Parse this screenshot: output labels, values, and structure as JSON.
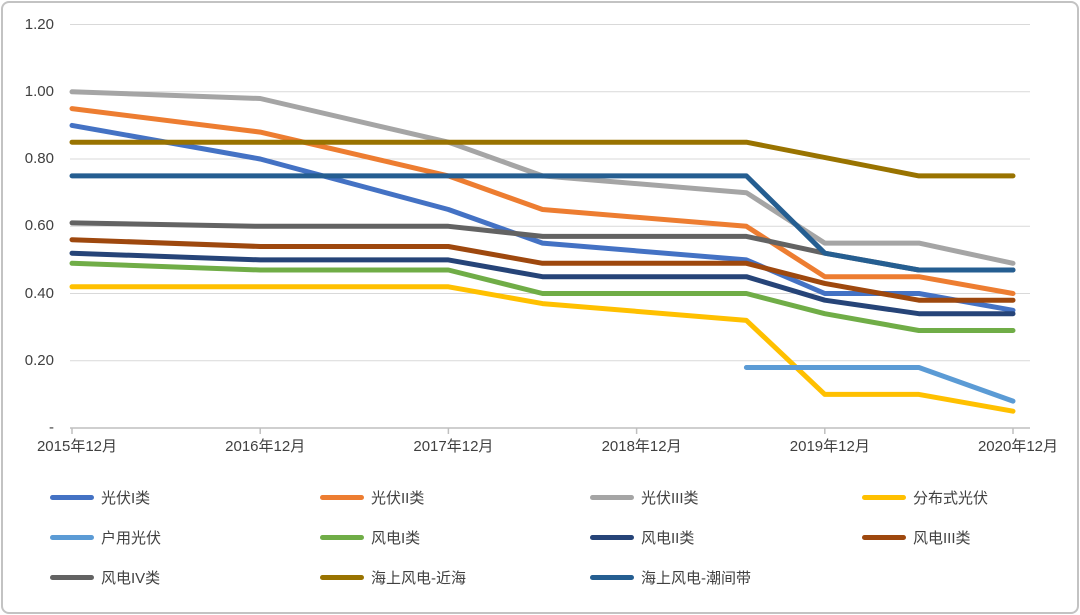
{
  "chart_data": {
    "type": "line",
    "title": "",
    "grid": "horizontal",
    "legend_position": "bottom",
    "x_axis_unit": "date",
    "x_range_months": [
      0,
      60
    ],
    "ylim": [
      0,
      1.2
    ],
    "colors": {
      "gridline": "#d9d9d9",
      "axis_line": "#bfbfbf",
      "tick_mark": "#bfbfbf",
      "tick_text": "#404040"
    },
    "y_ticks": [
      {
        "value": 0.0,
        "label": "-"
      },
      {
        "value": 0.2,
        "label": "0.20"
      },
      {
        "value": 0.4,
        "label": "0.40"
      },
      {
        "value": 0.6,
        "label": "0.60"
      },
      {
        "value": 0.8,
        "label": "0.80"
      },
      {
        "value": 1.0,
        "label": "1.00"
      },
      {
        "value": 1.2,
        "label": "1.20"
      }
    ],
    "x_ticks": [
      {
        "month": 0,
        "label": "2015年12月"
      },
      {
        "month": 12,
        "label": "2016年12月"
      },
      {
        "month": 24,
        "label": "2017年12月"
      },
      {
        "month": 36,
        "label": "2018年12月"
      },
      {
        "month": 48,
        "label": "2019年12月"
      },
      {
        "month": 60,
        "label": "2020年12月"
      }
    ],
    "series": [
      {
        "name": "光伏I类",
        "color": "#4472C4",
        "points": [
          [
            0,
            0.9
          ],
          [
            12,
            0.8
          ],
          [
            24,
            0.65
          ],
          [
            30,
            0.55
          ],
          [
            43,
            0.5
          ],
          [
            48,
            0.4
          ],
          [
            54,
            0.4
          ],
          [
            60,
            0.35
          ]
        ]
      },
      {
        "name": "光伏II类",
        "color": "#ED7D31",
        "points": [
          [
            0,
            0.95
          ],
          [
            12,
            0.88
          ],
          [
            24,
            0.75
          ],
          [
            30,
            0.65
          ],
          [
            43,
            0.6
          ],
          [
            48,
            0.45
          ],
          [
            54,
            0.45
          ],
          [
            60,
            0.4
          ]
        ]
      },
      {
        "name": "光伏III类",
        "color": "#A5A5A5",
        "points": [
          [
            0,
            1.0
          ],
          [
            12,
            0.98
          ],
          [
            24,
            0.85
          ],
          [
            30,
            0.75
          ],
          [
            43,
            0.7
          ],
          [
            48,
            0.55
          ],
          [
            54,
            0.55
          ],
          [
            60,
            0.49
          ]
        ]
      },
      {
        "name": "分布式光伏",
        "color": "#FFC000",
        "points": [
          [
            0,
            0.42
          ],
          [
            12,
            0.42
          ],
          [
            24,
            0.42
          ],
          [
            30,
            0.37
          ],
          [
            43,
            0.32
          ],
          [
            48,
            0.1
          ],
          [
            54,
            0.1
          ],
          [
            60,
            0.05
          ]
        ]
      },
      {
        "name": "户用光伏",
        "color": "#5B9BD5",
        "points": [
          [
            43,
            0.18
          ],
          [
            54,
            0.18
          ],
          [
            60,
            0.08
          ]
        ]
      },
      {
        "name": "风电I类",
        "color": "#70AD47",
        "points": [
          [
            0,
            0.49
          ],
          [
            12,
            0.47
          ],
          [
            24,
            0.47
          ],
          [
            30,
            0.4
          ],
          [
            43,
            0.4
          ],
          [
            48,
            0.34
          ],
          [
            54,
            0.29
          ],
          [
            60,
            0.29
          ]
        ]
      },
      {
        "name": "风电II类",
        "color": "#264478",
        "points": [
          [
            0,
            0.52
          ],
          [
            12,
            0.5
          ],
          [
            24,
            0.5
          ],
          [
            30,
            0.45
          ],
          [
            43,
            0.45
          ],
          [
            48,
            0.38
          ],
          [
            54,
            0.34
          ],
          [
            60,
            0.34
          ]
        ]
      },
      {
        "name": "风电III类",
        "color": "#9E480E",
        "points": [
          [
            0,
            0.56
          ],
          [
            12,
            0.54
          ],
          [
            24,
            0.54
          ],
          [
            30,
            0.49
          ],
          [
            43,
            0.49
          ],
          [
            48,
            0.43
          ],
          [
            54,
            0.38
          ],
          [
            60,
            0.38
          ]
        ]
      },
      {
        "name": "风电IV类",
        "color": "#636363",
        "points": [
          [
            0,
            0.61
          ],
          [
            12,
            0.6
          ],
          [
            24,
            0.6
          ],
          [
            30,
            0.57
          ],
          [
            43,
            0.57
          ],
          [
            48,
            0.52
          ],
          [
            54,
            0.47
          ],
          [
            60,
            0.47
          ]
        ]
      },
      {
        "name": "海上风电-近海",
        "color": "#997300",
        "points": [
          [
            0,
            0.85
          ],
          [
            43,
            0.85
          ],
          [
            54,
            0.75
          ],
          [
            60,
            0.75
          ]
        ]
      },
      {
        "name": "海上风电-潮间带",
        "color": "#255E91",
        "points": [
          [
            0,
            0.75
          ],
          [
            43,
            0.75
          ],
          [
            48,
            0.52
          ],
          [
            54,
            0.47
          ],
          [
            60,
            0.47
          ]
        ]
      }
    ]
  },
  "legend": {
    "rows": 3,
    "columns": 4
  }
}
